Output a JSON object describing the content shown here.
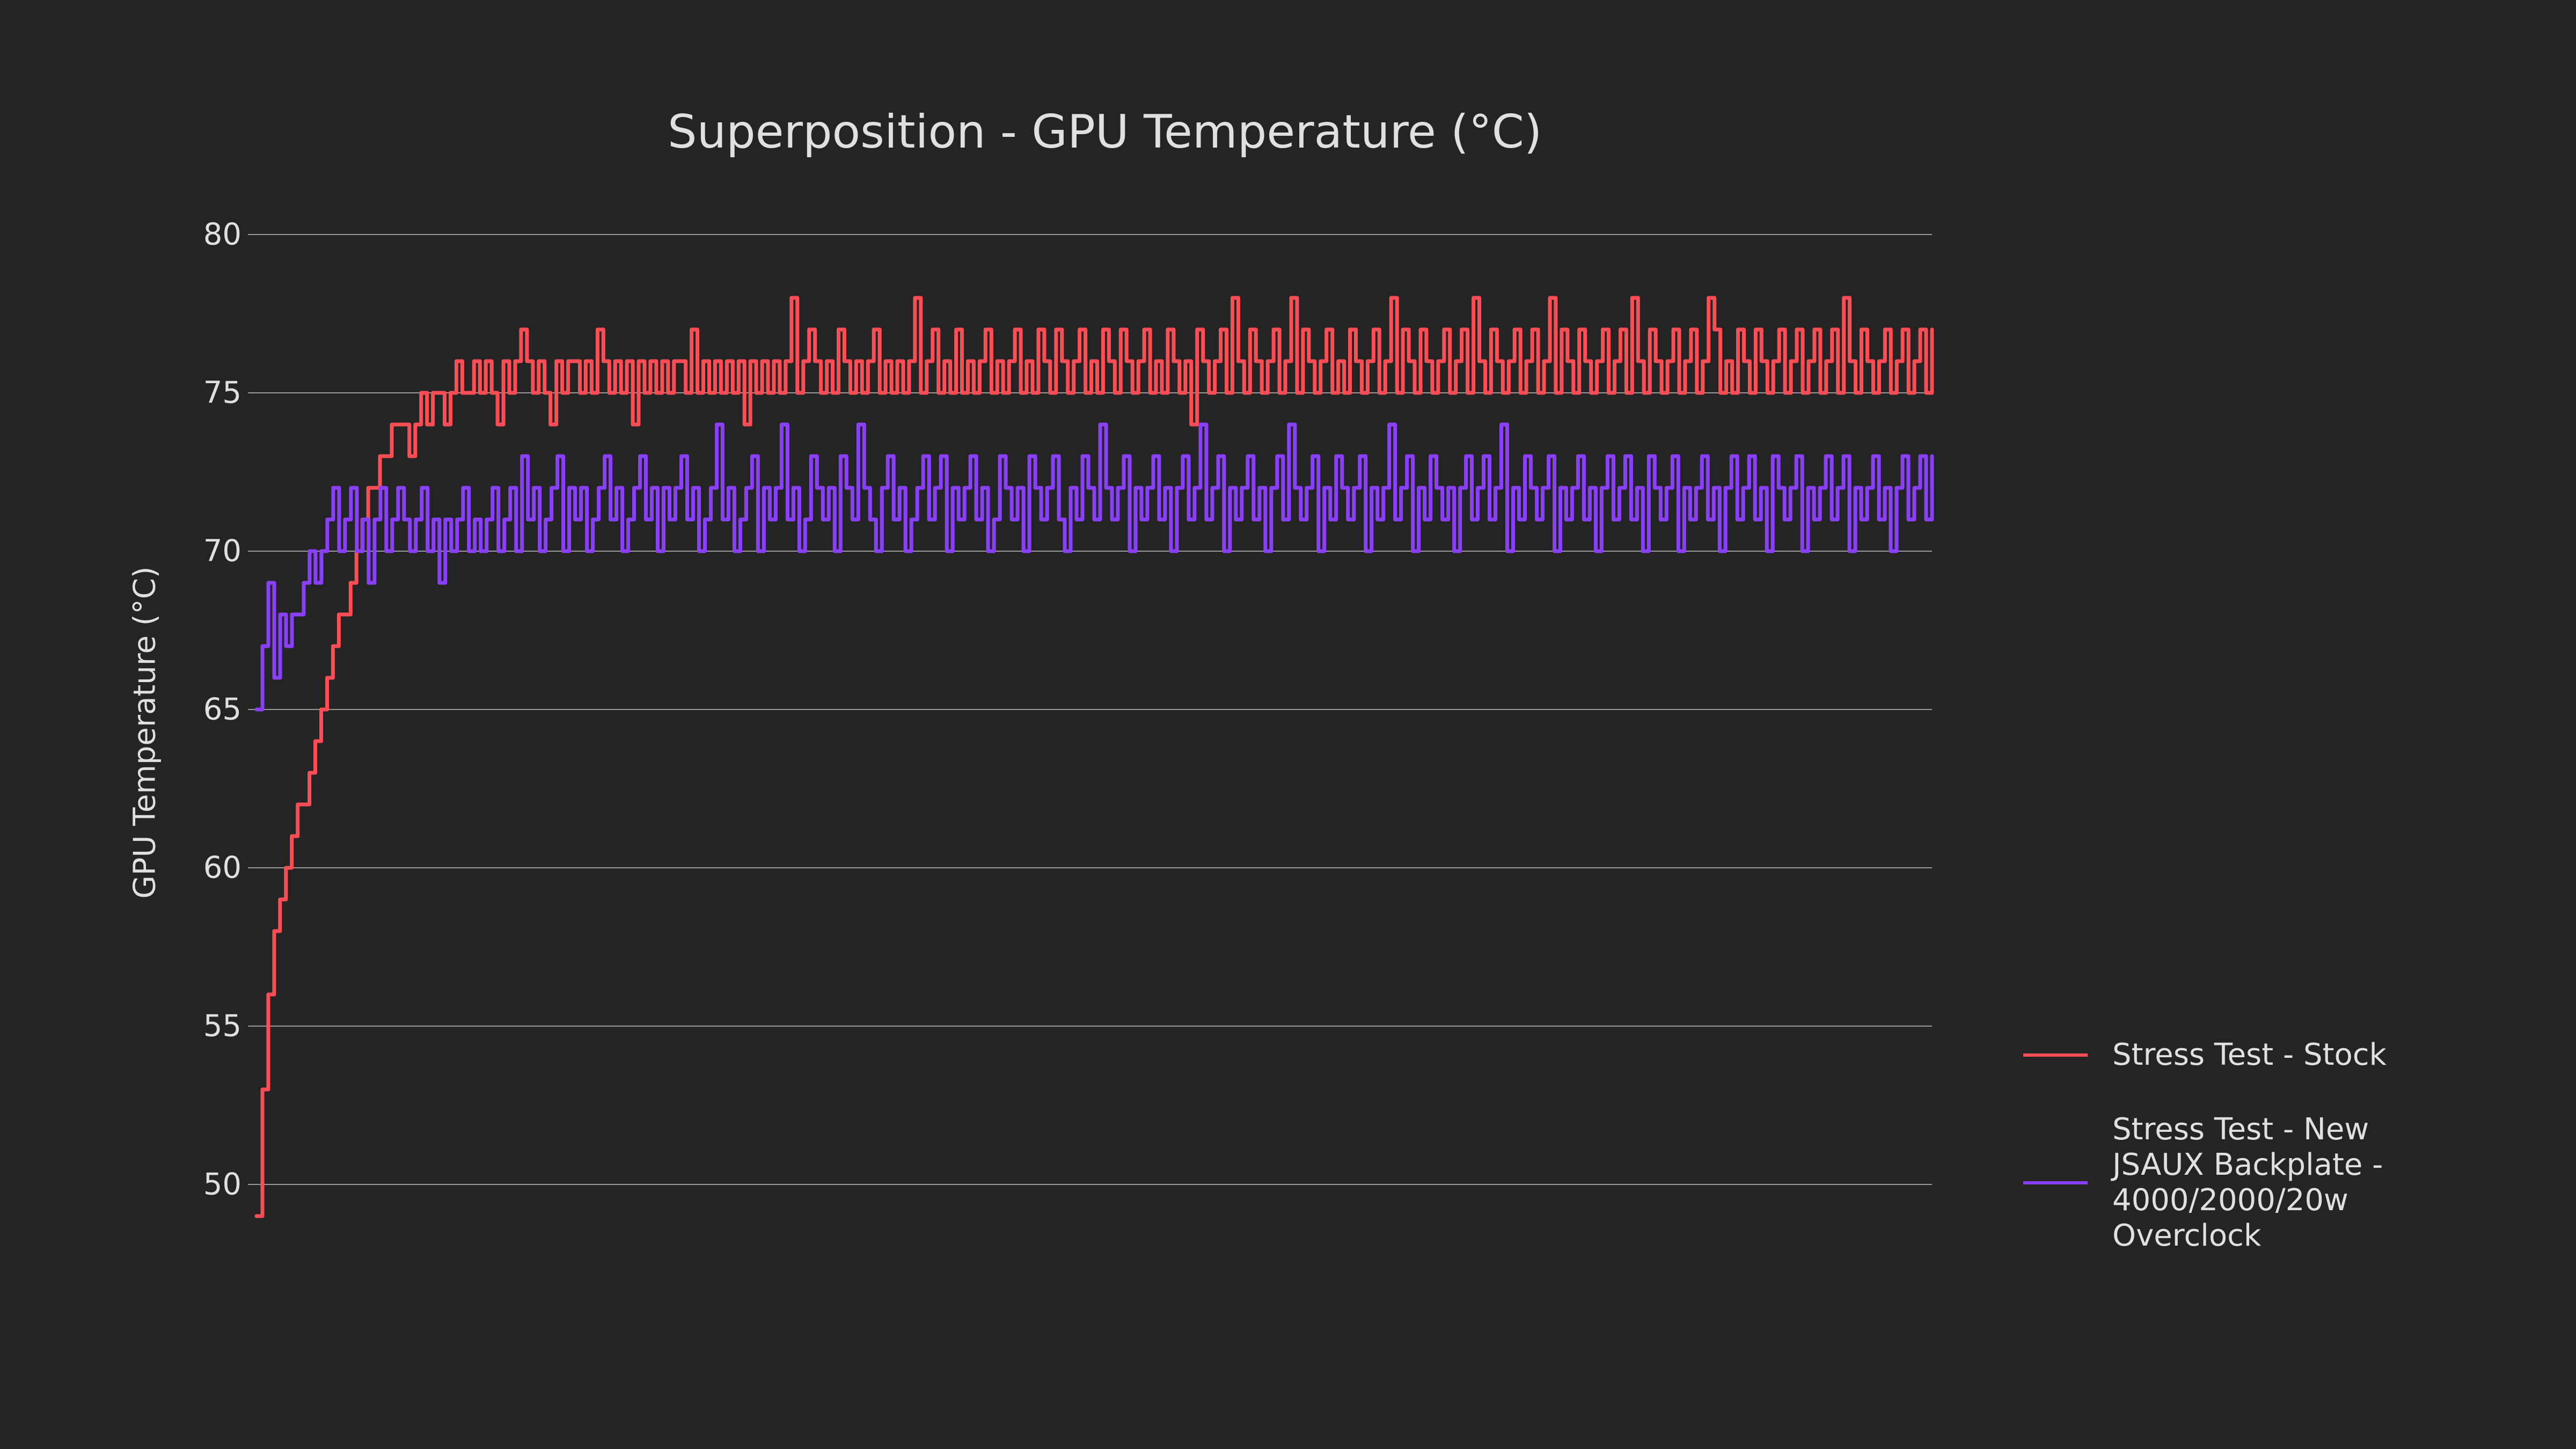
{
  "chart_data": {
    "type": "line",
    "title": "Superposition - GPU Temperature (°C)",
    "xlabel": "",
    "ylabel": "GPU Temperature (°C)",
    "ylim": [
      49,
      80
    ],
    "yticks": [
      80,
      75,
      70,
      65,
      60,
      55,
      50
    ],
    "grid": true,
    "legend_position": "right",
    "series": [
      {
        "name": "Stress Test - Stock",
        "color": "#ff4d55",
        "values": [
          49,
          53,
          56,
          58,
          59,
          60,
          61,
          62,
          62,
          63,
          64,
          65,
          66,
          67,
          68,
          68,
          69,
          70,
          71,
          72,
          72,
          73,
          73,
          74,
          74,
          74,
          73,
          74,
          75,
          74,
          75,
          75,
          74,
          75,
          76,
          75,
          75,
          76,
          75,
          76,
          75,
          74,
          76,
          75,
          76,
          77,
          76,
          75,
          76,
          75,
          74,
          76,
          75,
          76,
          76,
          75,
          76,
          75,
          77,
          76,
          75,
          76,
          75,
          76,
          74,
          76,
          75,
          76,
          75,
          76,
          75,
          76,
          76,
          75,
          77,
          75,
          76,
          75,
          76,
          75,
          76,
          75,
          76,
          74,
          76,
          75,
          76,
          75,
          76,
          75,
          76,
          78,
          75,
          76,
          77,
          76,
          75,
          76,
          75,
          77,
          76,
          75,
          76,
          75,
          76,
          77,
          75,
          76,
          75,
          76,
          75,
          76,
          78,
          75,
          76,
          77,
          75,
          76,
          75,
          77,
          75,
          76,
          75,
          76,
          77,
          75,
          76,
          75,
          76,
          77,
          75,
          76,
          75,
          77,
          76,
          75,
          77,
          76,
          75,
          76,
          77,
          75,
          76,
          75,
          77,
          76,
          75,
          77,
          76,
          75,
          76,
          77,
          75,
          76,
          75,
          77,
          76,
          75,
          76,
          74,
          77,
          76,
          75,
          76,
          77,
          75,
          78,
          76,
          75,
          77,
          76,
          75,
          76,
          77,
          75,
          76,
          78,
          75,
          77,
          76,
          75,
          76,
          77,
          75,
          76,
          75,
          77,
          76,
          75,
          76,
          77,
          75,
          76,
          78,
          75,
          77,
          76,
          75,
          77,
          76,
          75,
          76,
          77,
          75,
          76,
          77,
          75,
          78,
          76,
          75,
          77,
          76,
          75,
          76,
          77,
          75,
          76,
          77,
          75,
          76,
          78,
          75,
          77,
          76,
          75,
          77,
          76,
          75,
          76,
          77,
          75,
          76,
          77,
          75,
          78,
          76,
          75,
          77,
          76,
          75,
          76,
          77,
          75,
          76,
          77,
          75,
          76,
          78,
          77,
          75,
          76,
          75,
          77,
          76,
          75,
          77,
          76,
          75,
          76,
          77,
          75,
          76,
          77,
          75,
          76,
          77,
          75,
          76,
          77,
          75,
          78,
          76,
          75,
          77,
          76,
          75,
          76,
          77,
          75,
          76,
          77,
          75,
          76,
          77,
          75,
          77
        ]
      },
      {
        "name": "Stress Test - New JSAUX Backplate - 4000/2000/20w Overclock",
        "color": "#8a3ffc",
        "values": [
          65,
          67,
          69,
          66,
          68,
          67,
          68,
          68,
          69,
          70,
          69,
          70,
          71,
          72,
          70,
          71,
          72,
          70,
          71,
          69,
          71,
          72,
          70,
          71,
          72,
          71,
          70,
          71,
          72,
          70,
          71,
          69,
          71,
          70,
          71,
          72,
          70,
          71,
          70,
          71,
          72,
          70,
          71,
          72,
          70,
          73,
          71,
          72,
          70,
          71,
          72,
          73,
          70,
          72,
          71,
          72,
          70,
          71,
          72,
          73,
          71,
          72,
          70,
          71,
          72,
          73,
          71,
          72,
          70,
          72,
          71,
          72,
          73,
          71,
          72,
          70,
          71,
          72,
          74,
          71,
          72,
          70,
          71,
          72,
          73,
          70,
          72,
          71,
          72,
          74,
          71,
          72,
          70,
          71,
          73,
          72,
          71,
          72,
          70,
          73,
          72,
          71,
          74,
          72,
          71,
          70,
          72,
          73,
          71,
          72,
          70,
          71,
          72,
          73,
          71,
          72,
          73,
          70,
          72,
          71,
          72,
          73,
          71,
          72,
          70,
          71,
          73,
          72,
          71,
          72,
          70,
          73,
          72,
          71,
          72,
          73,
          71,
          70,
          72,
          71,
          73,
          72,
          71,
          74,
          72,
          71,
          72,
          73,
          70,
          72,
          71,
          72,
          73,
          71,
          72,
          70,
          72,
          73,
          71,
          72,
          74,
          71,
          72,
          73,
          70,
          72,
          71,
          72,
          73,
          71,
          72,
          70,
          72,
          73,
          71,
          74,
          72,
          71,
          72,
          73,
          70,
          72,
          71,
          73,
          72,
          71,
          72,
          73,
          70,
          72,
          71,
          72,
          74,
          71,
          72,
          73,
          70,
          72,
          71,
          73,
          72,
          71,
          72,
          70,
          72,
          73,
          71,
          72,
          73,
          71,
          72,
          74,
          70,
          72,
          71,
          73,
          72,
          71,
          72,
          73,
          70,
          72,
          71,
          72,
          73,
          71,
          72,
          70,
          72,
          73,
          71,
          72,
          73,
          71,
          72,
          70,
          73,
          72,
          71,
          72,
          73,
          70,
          72,
          71,
          72,
          73,
          71,
          72,
          70,
          72,
          73,
          71,
          72,
          73,
          71,
          72,
          70,
          73,
          72,
          71,
          72,
          73,
          70,
          72,
          71,
          72,
          73,
          71,
          72,
          73,
          70,
          72,
          71,
          72,
          73,
          71,
          72,
          70,
          72,
          73,
          71,
          72,
          73,
          71,
          73
        ]
      }
    ]
  },
  "title": "Superposition - GPU Temperature (°C)",
  "ylabel": "GPU Temperature (°C)",
  "yticks": [
    "80",
    "75",
    "70",
    "65",
    "60",
    "55",
    "50"
  ],
  "legend": [
    {
      "label": "Stress Test - Stock",
      "color": "#ff4d55"
    },
    {
      "label": "Stress Test - New JSAUX Backplate - 4000/2000/20w Overclock",
      "color": "#8a3ffc"
    }
  ]
}
